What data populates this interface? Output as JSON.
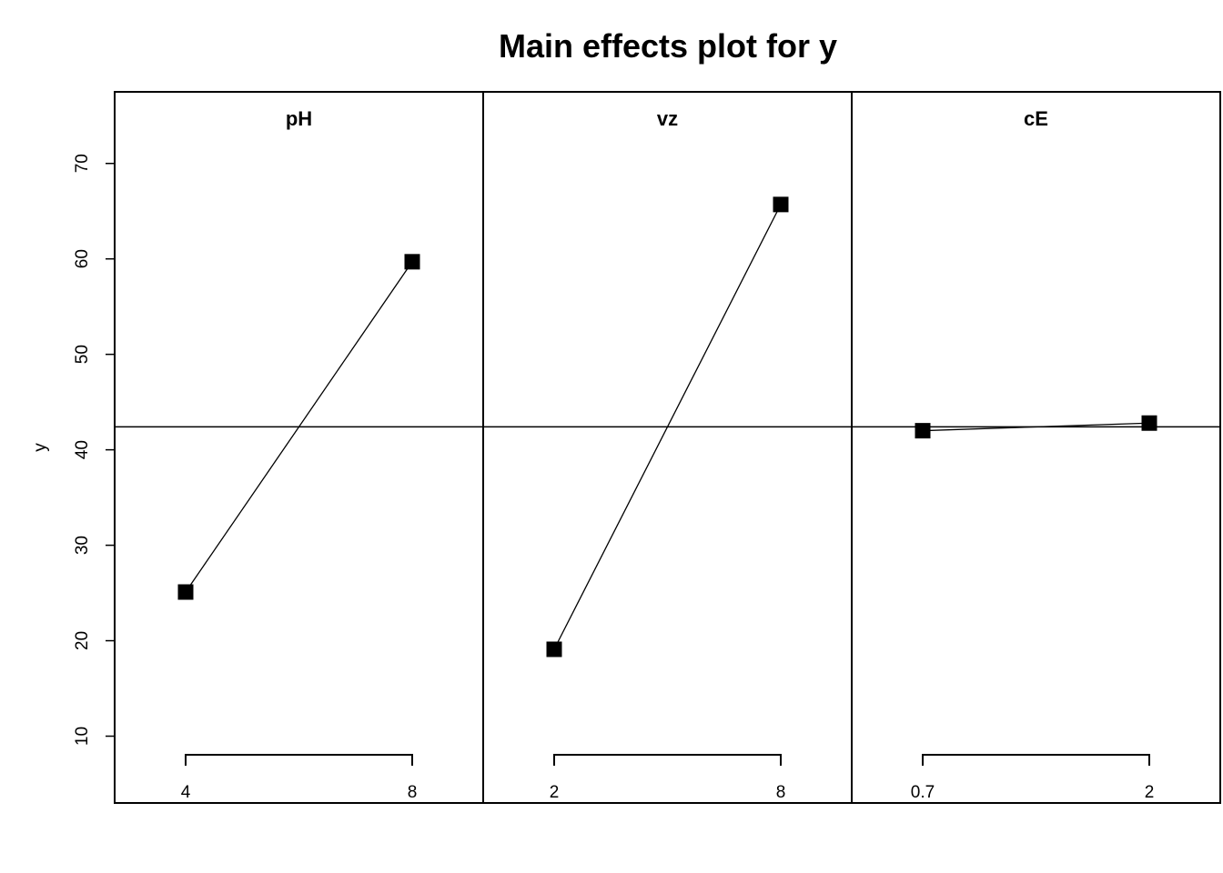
{
  "chart_data": {
    "type": "line",
    "title": "Main effects plot for y",
    "xlabel": "",
    "ylabel": "y",
    "ylim": [
      3,
      77.5
    ],
    "yticks": [
      10,
      20,
      30,
      40,
      50,
      60,
      70
    ],
    "grand_mean": 42.4,
    "marker": "square",
    "colors": {
      "line": "#000000",
      "marker": "#000000",
      "frame": "#000000"
    },
    "panels": [
      {
        "name": "pH",
        "levels": [
          "4",
          "8"
        ],
        "values": [
          25.1,
          59.7
        ]
      },
      {
        "name": "vz",
        "levels": [
          "2",
          "8"
        ],
        "values": [
          19.1,
          65.7
        ]
      },
      {
        "name": "cE",
        "levels": [
          "0.7",
          "2"
        ],
        "values": [
          42.0,
          42.8
        ]
      }
    ]
  }
}
